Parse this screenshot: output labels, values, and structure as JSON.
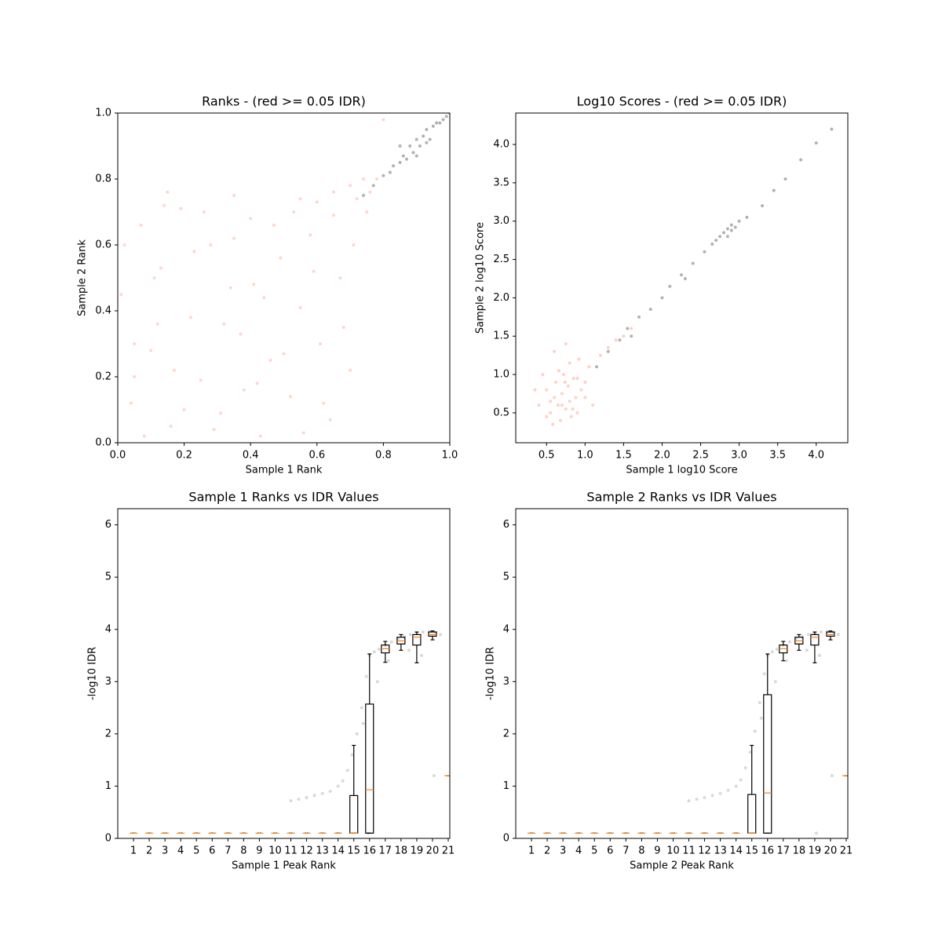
{
  "chart_data": [
    {
      "type": "scatter",
      "title": "Ranks - (red >= 0.05 IDR)",
      "xlabel": "Sample 1 Rank",
      "ylabel": "Sample 2 Rank",
      "xlim": [
        0,
        1
      ],
      "ylim": [
        0,
        1
      ],
      "xticks": [
        {
          "value": 0,
          "label": "0.0"
        },
        0.2,
        0.4,
        0.6,
        0.8,
        {
          "value": 1,
          "label": "1.0"
        }
      ],
      "yticks": [
        {
          "value": 0,
          "label": "0.0"
        },
        0.2,
        0.4,
        0.6,
        0.8,
        {
          "value": 1,
          "label": "1.0"
        }
      ],
      "series": [
        {
          "color": "#fc8d6b",
          "opacity": 0.35,
          "x": [
            0.01,
            0.04,
            0.07,
            0.1,
            0.13,
            0.16,
            0.19,
            0.22,
            0.25,
            0.28,
            0.31,
            0.34,
            0.37,
            0.4,
            0.43,
            0.46,
            0.49,
            0.52,
            0.55,
            0.58,
            0.61,
            0.64,
            0.67,
            0.7,
            0.02,
            0.05,
            0.08,
            0.11,
            0.14,
            0.17,
            0.2,
            0.23,
            0.26,
            0.29,
            0.32,
            0.35,
            0.38,
            0.41,
            0.44,
            0.47,
            0.5,
            0.53,
            0.56,
            0.59,
            0.62,
            0.65,
            0.68,
            0.71,
            0.6,
            0.65,
            0.7,
            0.72,
            0.74,
            0.76,
            0.78,
            0.75,
            0.8,
            0.15,
            0.35,
            0.55,
            0.42,
            0.12,
            0.05
          ],
          "y": [
            0.45,
            0.12,
            0.66,
            0.28,
            0.53,
            0.05,
            0.71,
            0.38,
            0.19,
            0.6,
            0.09,
            0.47,
            0.33,
            0.68,
            0.02,
            0.25,
            0.56,
            0.14,
            0.41,
            0.63,
            0.3,
            0.07,
            0.5,
            0.22,
            0.6,
            0.3,
            0.02,
            0.5,
            0.72,
            0.22,
            0.1,
            0.58,
            0.7,
            0.04,
            0.36,
            0.62,
            0.16,
            0.48,
            0.44,
            0.66,
            0.27,
            0.7,
            0.03,
            0.52,
            0.12,
            0.69,
            0.35,
            0.6,
            0.73,
            0.76,
            0.78,
            0.74,
            0.8,
            0.76,
            0.8,
            0.7,
            0.98,
            0.76,
            0.75,
            0.74,
            0.18,
            0.36,
            0.2
          ]
        },
        {
          "color": "#000000",
          "opacity": 0.3,
          "x": [
            0.74,
            0.77,
            0.8,
            0.82,
            0.83,
            0.85,
            0.86,
            0.87,
            0.88,
            0.89,
            0.9,
            0.91,
            0.92,
            0.93,
            0.94,
            0.95,
            0.96,
            0.97,
            0.98,
            0.99,
            1.0,
            0.85,
            0.9,
            0.93
          ],
          "y": [
            0.75,
            0.78,
            0.81,
            0.82,
            0.84,
            0.85,
            0.87,
            0.86,
            0.9,
            0.88,
            0.92,
            0.9,
            0.93,
            0.95,
            0.92,
            0.96,
            0.97,
            0.97,
            0.98,
            0.99,
            1.0,
            0.9,
            0.87,
            0.91
          ]
        }
      ]
    },
    {
      "type": "scatter",
      "title": "Log10 Scores - (red >= 0.05 IDR)",
      "xlabel": "Sample 1 log10 Score",
      "ylabel": "Sample 2 log10 Score",
      "xlim": [
        0.1,
        4.41
      ],
      "ylim": [
        0.11,
        4.41
      ],
      "xticks": [
        0.5,
        {
          "value": 1,
          "label": "1.0"
        },
        1.5,
        {
          "value": 2,
          "label": "2.0"
        },
        2.5,
        {
          "value": 3,
          "label": "3.0"
        },
        3.5,
        {
          "value": 4,
          "label": "4.0"
        }
      ],
      "yticks": [
        0.5,
        {
          "value": 1,
          "label": "1.0"
        },
        1.5,
        {
          "value": 2,
          "label": "2.0"
        },
        2.5,
        {
          "value": 3,
          "label": "3.0"
        },
        3.5,
        {
          "value": 4,
          "label": "4.0"
        }
      ],
      "series": [
        {
          "color": "#fc8d6b",
          "opacity": 0.4,
          "x": [
            0.4,
            0.5,
            0.55,
            0.6,
            0.62,
            0.65,
            0.68,
            0.7,
            0.72,
            0.75,
            0.78,
            0.8,
            0.82,
            0.85,
            0.88,
            0.9,
            0.95,
            1.0,
            1.05,
            1.1,
            0.45,
            0.58,
            0.66,
            0.74,
            0.84,
            0.92,
            0.5,
            0.7,
            0.8,
            0.6,
            1.2,
            1.3,
            1.4,
            1.5,
            1.6,
            0.35,
            1.0,
            0.9,
            0.55,
            0.75
          ],
          "y": [
            0.6,
            0.8,
            0.5,
            0.7,
            0.9,
            0.6,
            0.4,
            0.75,
            1.0,
            0.55,
            0.85,
            0.65,
            0.45,
            0.95,
            0.7,
            0.5,
            0.8,
            0.9,
            1.1,
            0.6,
            1.0,
            0.35,
            1.05,
            0.9,
            0.55,
            1.2,
            0.45,
            0.6,
            1.15,
            1.3,
            1.25,
            1.35,
            1.45,
            1.5,
            1.6,
            0.8,
            0.7,
            0.95,
            0.65,
            1.4
          ]
        },
        {
          "color": "#000000",
          "opacity": 0.3,
          "x": [
            1.15,
            1.3,
            1.45,
            1.55,
            1.7,
            1.85,
            2.0,
            2.1,
            2.25,
            2.4,
            2.55,
            2.65,
            2.7,
            2.75,
            2.8,
            2.85,
            2.9,
            2.95,
            3.0,
            2.85,
            2.9,
            3.1,
            3.3,
            3.45,
            3.6,
            3.8,
            4.0,
            4.2,
            1.6,
            2.3
          ],
          "y": [
            1.1,
            1.3,
            1.45,
            1.6,
            1.75,
            1.85,
            2.0,
            2.15,
            2.3,
            2.45,
            2.6,
            2.7,
            2.75,
            2.8,
            2.85,
            2.9,
            2.95,
            2.92,
            3.0,
            2.8,
            2.88,
            3.05,
            3.2,
            3.4,
            3.55,
            3.8,
            4.02,
            4.2,
            1.5,
            2.25
          ]
        }
      ]
    },
    {
      "type": "box",
      "title": "Sample 1 Ranks vs IDR Values",
      "xlabel": "Sample 1 Peak Rank",
      "ylabel": "-log10 IDR",
      "xlim": [
        0,
        21.1
      ],
      "ylim": [
        0,
        6.31
      ],
      "xticks": [
        1,
        2,
        3,
        4,
        5,
        6,
        7,
        8,
        9,
        10,
        11,
        12,
        13,
        14,
        15,
        16,
        17,
        18,
        19,
        20,
        21
      ],
      "yticks": [
        0,
        1,
        2,
        3,
        4,
        5,
        6
      ],
      "box_color": "#000000",
      "median_color": "#ff7f0e",
      "points": {
        "color": "#808080",
        "opacity": 0.3,
        "x": [
          11,
          11.5,
          12,
          12.5,
          13,
          13.5,
          14,
          14.3,
          14.6,
          14.9,
          15.2,
          15.5,
          15.8,
          16,
          16.3,
          16.6,
          17,
          17.4,
          17.8,
          18.2,
          18.6,
          19,
          19.4,
          19.8,
          20.2,
          20.5,
          15.6,
          16.5,
          17.2,
          18.5,
          19.3,
          20.1,
          15.9
        ],
        "y": [
          0.72,
          0.75,
          0.78,
          0.82,
          0.86,
          0.9,
          1.0,
          1.1,
          1.3,
          1.6,
          2.0,
          2.5,
          3.1,
          3.5,
          3.57,
          3.62,
          3.7,
          3.76,
          3.82,
          3.86,
          3.9,
          3.93,
          3.95,
          3.96,
          3.94,
          3.9,
          2.2,
          3.0,
          3.4,
          3.6,
          3.5,
          1.2,
          0.1
        ]
      },
      "boxes": [
        {
          "whislo": 0.1,
          "q1": 0.1,
          "med": 0.1,
          "q3": 0.1,
          "whishi": 0.1
        },
        {
          "whislo": 0.1,
          "q1": 0.1,
          "med": 0.1,
          "q3": 0.1,
          "whishi": 0.1
        },
        {
          "whislo": 0.1,
          "q1": 0.1,
          "med": 0.1,
          "q3": 0.1,
          "whishi": 0.1
        },
        {
          "whislo": 0.1,
          "q1": 0.1,
          "med": 0.1,
          "q3": 0.1,
          "whishi": 0.1
        },
        {
          "whislo": 0.1,
          "q1": 0.1,
          "med": 0.1,
          "q3": 0.1,
          "whishi": 0.1
        },
        {
          "whislo": 0.1,
          "q1": 0.1,
          "med": 0.1,
          "q3": 0.1,
          "whishi": 0.1
        },
        {
          "whislo": 0.1,
          "q1": 0.1,
          "med": 0.1,
          "q3": 0.1,
          "whishi": 0.1
        },
        {
          "whislo": 0.1,
          "q1": 0.1,
          "med": 0.1,
          "q3": 0.1,
          "whishi": 0.1
        },
        {
          "whislo": 0.1,
          "q1": 0.1,
          "med": 0.1,
          "q3": 0.1,
          "whishi": 0.1
        },
        {
          "whislo": 0.1,
          "q1": 0.1,
          "med": 0.1,
          "q3": 0.1,
          "whishi": 0.1
        },
        {
          "whislo": 0.1,
          "q1": 0.1,
          "med": 0.1,
          "q3": 0.1,
          "whishi": 0.1
        },
        {
          "whislo": 0.1,
          "q1": 0.1,
          "med": 0.1,
          "q3": 0.1,
          "whishi": 0.1
        },
        {
          "whislo": 0.1,
          "q1": 0.1,
          "med": 0.1,
          "q3": 0.1,
          "whishi": 0.1
        },
        {
          "whislo": 0.1,
          "q1": 0.1,
          "med": 0.1,
          "q3": 0.1,
          "whishi": 0.1
        },
        {
          "whislo": 0.1,
          "q1": 0.1,
          "med": 0.1,
          "q3": 0.82,
          "whishi": 1.78
        },
        {
          "whislo": 0.1,
          "q1": 0.1,
          "med": 0.93,
          "q3": 2.57,
          "whishi": 3.53
        },
        {
          "whislo": 3.37,
          "q1": 3.55,
          "med": 3.63,
          "q3": 3.7,
          "whishi": 3.77
        },
        {
          "whislo": 3.6,
          "q1": 3.72,
          "med": 3.78,
          "q3": 3.85,
          "whishi": 3.9
        },
        {
          "whislo": 3.36,
          "q1": 3.7,
          "med": 3.85,
          "q3": 3.9,
          "whishi": 3.95
        },
        {
          "whislo": 3.8,
          "q1": 3.87,
          "med": 3.9,
          "q3": 3.95,
          "whishi": 3.97
        },
        {
          "whislo": 1.2,
          "q1": 1.2,
          "med": 1.2,
          "q3": 1.2,
          "whishi": 1.2
        }
      ]
    },
    {
      "type": "box",
      "title": "Sample 2 Ranks vs IDR Values",
      "xlabel": "Sample 2 Peak Rank",
      "ylabel": "-log10 IDR",
      "xlim": [
        0,
        21.1
      ],
      "ylim": [
        0,
        6.31
      ],
      "xticks": [
        1,
        2,
        3,
        4,
        5,
        6,
        7,
        8,
        9,
        10,
        11,
        12,
        13,
        14,
        15,
        16,
        17,
        18,
        19,
        20,
        21
      ],
      "yticks": [
        0,
        1,
        2,
        3,
        4,
        5,
        6
      ],
      "box_color": "#000000",
      "median_color": "#ff7f0e",
      "points": {
        "color": "#808080",
        "opacity": 0.3,
        "x": [
          11,
          11.5,
          12,
          12.5,
          13,
          13.5,
          14,
          14.3,
          14.6,
          14.9,
          15.2,
          15.5,
          15.8,
          16,
          16.3,
          16.6,
          17,
          17.4,
          17.8,
          18.2,
          18.6,
          19,
          19.4,
          19.8,
          20.2,
          20.5,
          15.6,
          16.5,
          17.2,
          18.5,
          19.3,
          20.1,
          19.1
        ],
        "y": [
          0.72,
          0.75,
          0.78,
          0.82,
          0.86,
          0.92,
          1.0,
          1.12,
          1.35,
          1.65,
          2.05,
          2.6,
          3.15,
          3.5,
          3.57,
          3.62,
          3.7,
          3.76,
          3.82,
          3.86,
          3.9,
          3.93,
          3.95,
          3.96,
          3.94,
          3.9,
          2.3,
          3.0,
          3.4,
          3.6,
          3.5,
          1.2,
          0.1
        ]
      },
      "boxes": [
        {
          "whislo": 0.1,
          "q1": 0.1,
          "med": 0.1,
          "q3": 0.1,
          "whishi": 0.1
        },
        {
          "whislo": 0.1,
          "q1": 0.1,
          "med": 0.1,
          "q3": 0.1,
          "whishi": 0.1
        },
        {
          "whislo": 0.1,
          "q1": 0.1,
          "med": 0.1,
          "q3": 0.1,
          "whishi": 0.1
        },
        {
          "whislo": 0.1,
          "q1": 0.1,
          "med": 0.1,
          "q3": 0.1,
          "whishi": 0.1
        },
        {
          "whislo": 0.1,
          "q1": 0.1,
          "med": 0.1,
          "q3": 0.1,
          "whishi": 0.1
        },
        {
          "whislo": 0.1,
          "q1": 0.1,
          "med": 0.1,
          "q3": 0.1,
          "whishi": 0.1
        },
        {
          "whislo": 0.1,
          "q1": 0.1,
          "med": 0.1,
          "q3": 0.1,
          "whishi": 0.1
        },
        {
          "whislo": 0.1,
          "q1": 0.1,
          "med": 0.1,
          "q3": 0.1,
          "whishi": 0.1
        },
        {
          "whislo": 0.1,
          "q1": 0.1,
          "med": 0.1,
          "q3": 0.1,
          "whishi": 0.1
        },
        {
          "whislo": 0.1,
          "q1": 0.1,
          "med": 0.1,
          "q3": 0.1,
          "whishi": 0.1
        },
        {
          "whislo": 0.1,
          "q1": 0.1,
          "med": 0.1,
          "q3": 0.1,
          "whishi": 0.1
        },
        {
          "whislo": 0.1,
          "q1": 0.1,
          "med": 0.1,
          "q3": 0.1,
          "whishi": 0.1
        },
        {
          "whislo": 0.1,
          "q1": 0.1,
          "med": 0.1,
          "q3": 0.1,
          "whishi": 0.1
        },
        {
          "whislo": 0.1,
          "q1": 0.1,
          "med": 0.1,
          "q3": 0.1,
          "whishi": 0.1
        },
        {
          "whislo": 0.1,
          "q1": 0.1,
          "med": 0.1,
          "q3": 0.84,
          "whishi": 1.78
        },
        {
          "whislo": 0.1,
          "q1": 0.1,
          "med": 0.87,
          "q3": 2.75,
          "whishi": 3.53
        },
        {
          "whislo": 3.4,
          "q1": 3.55,
          "med": 3.63,
          "q3": 3.7,
          "whishi": 3.77
        },
        {
          "whislo": 3.6,
          "q1": 3.72,
          "med": 3.78,
          "q3": 3.85,
          "whishi": 3.9
        },
        {
          "whislo": 3.36,
          "q1": 3.7,
          "med": 3.85,
          "q3": 3.9,
          "whishi": 3.95
        },
        {
          "whislo": 3.8,
          "q1": 3.87,
          "med": 3.9,
          "q3": 3.95,
          "whishi": 3.97
        },
        {
          "whislo": 1.2,
          "q1": 1.2,
          "med": 1.2,
          "q3": 1.2,
          "whishi": 1.2
        }
      ]
    }
  ]
}
